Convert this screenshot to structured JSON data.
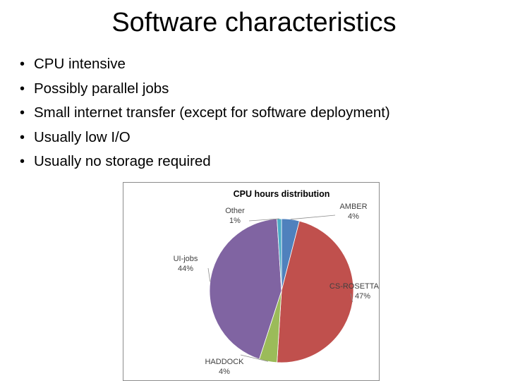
{
  "slide": {
    "title": "Software characteristics",
    "bullets": [
      "CPU intensive",
      "Possibly parallel jobs",
      "Small internet transfer (except for software deployment)",
      "Usually low I/O",
      "Usually no storage required"
    ]
  },
  "chart_data": {
    "type": "pie",
    "title": "CPU hours distribution",
    "slices": [
      {
        "name": "AMBER",
        "value": 4,
        "label": "4%",
        "color": "#4f81bd"
      },
      {
        "name": "CS-ROSETTA",
        "value": 47,
        "label": "47%",
        "color": "#c0504d"
      },
      {
        "name": "HADDOCK",
        "value": 4,
        "label": "4%",
        "color": "#9bbb59"
      },
      {
        "name": "UI-jobs",
        "value": 44,
        "label": "44%",
        "color": "#8064a2"
      },
      {
        "name": "Other",
        "value": 1,
        "label": "1%",
        "color": "#4bacc6"
      }
    ],
    "legend": "none",
    "data_labels": "outside with leader lines"
  }
}
